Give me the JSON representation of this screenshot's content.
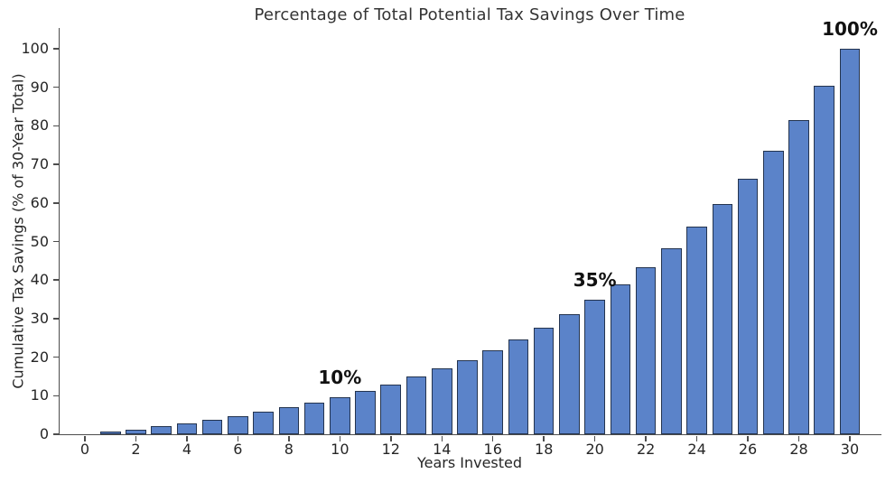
{
  "chart_data": {
    "type": "bar",
    "title": "Percentage of Total Potential Tax Savings Over Time",
    "xlabel": "Years Invested",
    "ylabel": "Cumulative Tax Savings (% of 30-Year Total)",
    "x": [
      0,
      1,
      2,
      3,
      4,
      5,
      6,
      7,
      8,
      9,
      10,
      11,
      12,
      13,
      14,
      15,
      16,
      17,
      18,
      19,
      20,
      21,
      22,
      23,
      24,
      25,
      26,
      27,
      28,
      29,
      30
    ],
    "values": [
      0,
      0.61,
      1.28,
      2.01,
      2.82,
      3.71,
      4.69,
      5.77,
      6.95,
      8.26,
      9.69,
      11.27,
      13.0,
      14.91,
      17.01,
      19.32,
      21.85,
      24.65,
      27.72,
      31.1,
      34.82,
      38.91,
      43.41,
      48.36,
      53.8,
      59.79,
      66.38,
      73.62,
      81.59,
      90.36,
      100.0
    ],
    "xticks": [
      0,
      2,
      4,
      6,
      8,
      10,
      12,
      14,
      16,
      18,
      20,
      22,
      24,
      26,
      28,
      30
    ],
    "yticks": [
      0,
      10,
      20,
      30,
      40,
      50,
      60,
      70,
      80,
      90,
      100
    ],
    "ylim": [
      0,
      105.4
    ],
    "xlim": [
      -1,
      31.2
    ],
    "grid": false,
    "legend": null,
    "bar_color": "#5b83c9",
    "bar_edge_color": "#24344f",
    "annotations": [
      {
        "year": 10,
        "label": "10%"
      },
      {
        "year": 20,
        "label": "35%"
      },
      {
        "year": 30,
        "label": "100%"
      }
    ]
  }
}
